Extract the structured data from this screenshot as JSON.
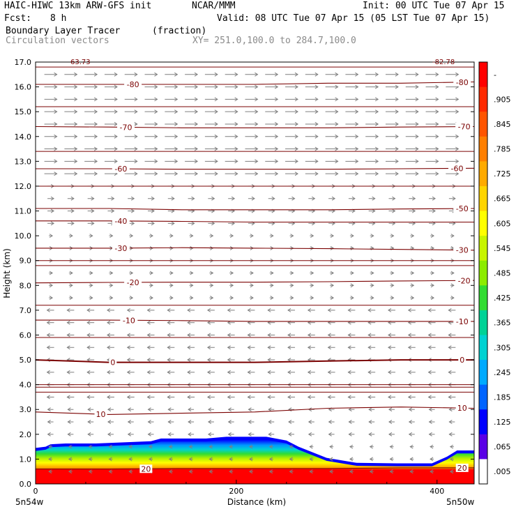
{
  "header": {
    "model": "HAIC-HIWC 13km ARW-GFS init",
    "org": "NCAR/MMM",
    "init": "Init: 00 UTC Tue 07 Apr 15",
    "fcst_label": "Fcst:",
    "fcst_value": "8 h",
    "valid": "Valid: 08 UTC Tue 07 Apr 15 (05 LST Tue 07 Apr 15)",
    "field": "Boundary Layer Tracer",
    "field_units": "(fraction)",
    "vectors": "Circulation vectors",
    "xy": "XY= 251.0,100.0 to 284.7,100.0"
  },
  "colors": {
    "contour": "#7a0000",
    "vector": "#7f7f7f",
    "frame": "#000000"
  },
  "chart_data": {
    "type": "heatmap",
    "xlabel": "Distance (km)",
    "ylabel": "Height (km)",
    "xlim": [
      0,
      437
    ],
    "ylim": [
      0,
      17
    ],
    "x_ticks": [
      {
        "v": 0,
        "label": "0"
      },
      {
        "v": 200,
        "label": "200"
      },
      {
        "v": 400,
        "label": "400"
      }
    ],
    "y_ticks": [
      "0.0",
      "1.0",
      "2.0",
      "3.0",
      "4.0",
      "5.0",
      "6.0",
      "7.0",
      "8.0",
      "9.0",
      "10.0",
      "11.0",
      "12.0",
      "13.0",
      "14.0",
      "15.0",
      "16.0",
      "17.0"
    ],
    "endpoint_labels": {
      "left": "5n54w",
      "right": "5n50w"
    },
    "corner_labels": {
      "left": "63.73",
      "right": "-82.78"
    },
    "colorbar": {
      "labels": [
        "-",
        ".905",
        ".845",
        ".785",
        ".725",
        ".665",
        ".605",
        ".545",
        ".485",
        ".425",
        ".365",
        ".305",
        ".245",
        ".185",
        ".125",
        ".065",
        ".005"
      ],
      "colors": [
        "#ff0000",
        "#ff2a00",
        "#ff5500",
        "#ff7f00",
        "#ffaa00",
        "#ffd400",
        "#ffff00",
        "#c8f500",
        "#8cec00",
        "#32dc32",
        "#00d296",
        "#00d2d2",
        "#00aaff",
        "#0064ff",
        "#0000ff",
        "#5a00e6",
        "#ffffff"
      ]
    },
    "tracer_top_km": [
      [
        0,
        1.45
      ],
      [
        10,
        1.5
      ],
      [
        15,
        1.6
      ],
      [
        30,
        1.63
      ],
      [
        60,
        1.63
      ],
      [
        90,
        1.68
      ],
      [
        115,
        1.72
      ],
      [
        125,
        1.83
      ],
      [
        170,
        1.83
      ],
      [
        190,
        1.9
      ],
      [
        230,
        1.9
      ],
      [
        250,
        1.75
      ],
      [
        262,
        1.5
      ],
      [
        290,
        1.05
      ],
      [
        320,
        0.85
      ],
      [
        360,
        0.83
      ],
      [
        395,
        0.83
      ],
      [
        410,
        1.1
      ],
      [
        420,
        1.35
      ],
      [
        437,
        1.35
      ]
    ],
    "contours": [
      {
        "level": -80,
        "y": [
          16.1,
          16.1,
          16.1,
          16.1,
          16.15,
          16.15,
          16.2
        ],
        "labels": [
          {
            "x": 97,
            "text": "-80"
          },
          {
            "x": 425,
            "text": "-80"
          }
        ]
      },
      {
        "level": -70,
        "y": [
          14.4,
          14.38,
          14.35,
          14.35,
          14.35,
          14.38,
          14.4
        ],
        "labels": [
          {
            "x": 90,
            "text": "-70"
          },
          {
            "x": 427,
            "text": "-70"
          }
        ]
      },
      {
        "level": -60,
        "y": [
          12.7,
          12.7,
          12.68,
          12.68,
          12.68,
          12.7,
          12.72
        ],
        "labels": [
          {
            "x": 85,
            "text": "-60"
          },
          {
            "x": 420,
            "text": "-60"
          }
        ]
      },
      {
        "level": -50,
        "y": [
          11.1,
          11.1,
          11.05,
          11.05,
          11.05,
          11.08,
          11.1
        ],
        "labels": [
          {
            "x": 425,
            "text": "-50"
          }
        ]
      },
      {
        "level": -40,
        "y": [
          10.6,
          10.6,
          10.58,
          10.55,
          10.55,
          10.55,
          10.55
        ],
        "labels": [
          {
            "x": 85,
            "text": "-40"
          }
        ]
      },
      {
        "level": -30,
        "y": [
          9.5,
          9.5,
          9.52,
          9.5,
          9.48,
          9.45,
          9.42
        ],
        "labels": [
          {
            "x": 85,
            "text": "-30"
          },
          {
            "x": 425,
            "text": "-30"
          }
        ]
      },
      {
        "level": -20,
        "y": [
          8.1,
          8.12,
          8.13,
          8.13,
          8.15,
          8.18,
          8.2
        ],
        "labels": [
          {
            "x": 97,
            "text": "-20"
          },
          {
            "x": 427,
            "text": "-20"
          }
        ]
      },
      {
        "level": -10,
        "y": [
          6.6,
          6.6,
          6.58,
          6.55,
          6.55,
          6.55,
          6.55
        ],
        "labels": [
          {
            "x": 93,
            "text": "-10"
          },
          {
            "x": 425,
            "text": "-10"
          }
        ]
      },
      {
        "level": 0,
        "y": [
          5.0,
          4.9,
          4.9,
          4.9,
          4.95,
          5.0,
          5.0
        ],
        "labels": [
          {
            "x": 77,
            "text": "0"
          },
          {
            "x": 425,
            "text": "0"
          }
        ]
      },
      {
        "level": 10,
        "y": [
          2.9,
          2.8,
          2.85,
          2.9,
          3.05,
          3.1,
          3.05
        ],
        "labels": [
          {
            "x": 65,
            "text": "10"
          },
          {
            "x": 425,
            "text": "10"
          }
        ]
      },
      {
        "level": 20,
        "y": [
          0.6,
          0.6,
          0.62,
          0.62,
          0.62,
          0.65,
          0.65
        ],
        "labels": [
          {
            "x": 110,
            "text": "20"
          },
          {
            "x": 425,
            "text": "20"
          }
        ]
      }
    ],
    "extra_lines_km": [
      16.8,
      15.2,
      13.4,
      12.0,
      9.0,
      8.8,
      7.2,
      5.9,
      4.0,
      3.9,
      3.7
    ]
  }
}
